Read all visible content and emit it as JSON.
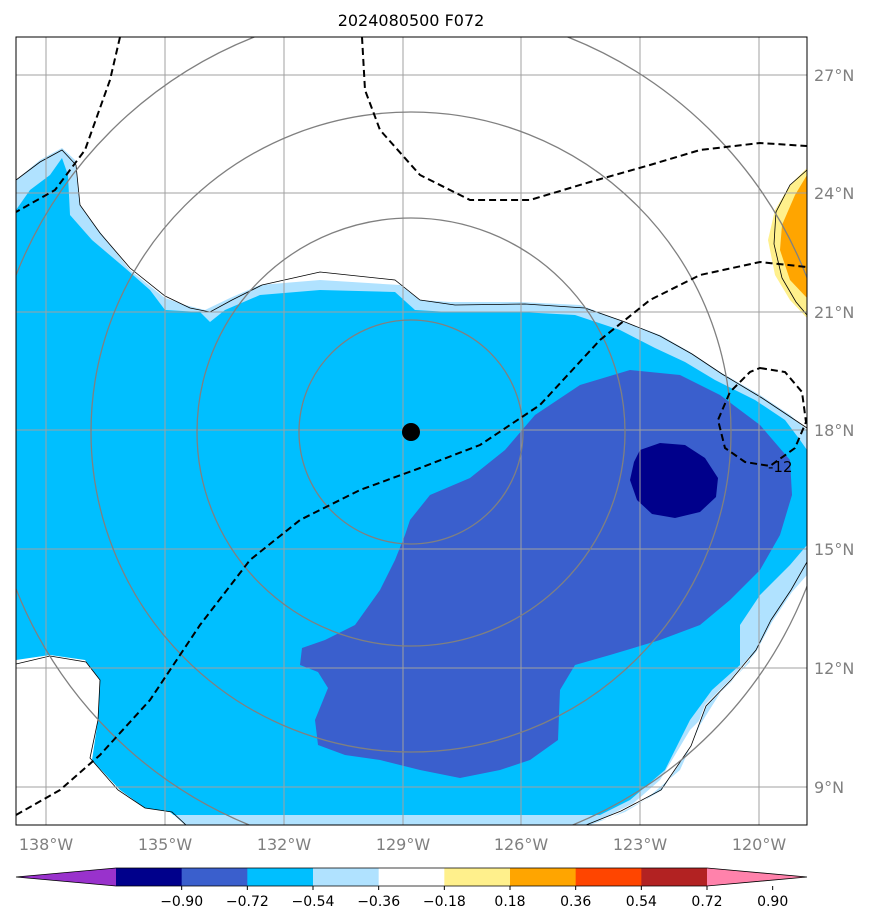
{
  "title": "2024080500 F072",
  "lat_labels": [
    "27°N",
    "24°N",
    "21°N",
    "18°N",
    "15°N",
    "12°N",
    "9°N"
  ],
  "lon_labels": [
    "138°W",
    "135°W",
    "132°W",
    "129°W",
    "126°W",
    "123°W",
    "120°W"
  ],
  "contour_label": "-12",
  "colorbar": {
    "labels": [
      "−0.90",
      "−0.72",
      "−0.54",
      "−0.36",
      "−0.18",
      "0.18",
      "0.36",
      "0.54",
      "0.72",
      "0.90"
    ],
    "colors": [
      "#9932cc",
      "#00008b",
      "#3a5fcd",
      "#00bfff",
      "#b0e2ff",
      "#ffffff",
      "#fff08c",
      "#ffa500",
      "#ff4500",
      "#b22222",
      "#ff82ab"
    ]
  },
  "colors": {
    "level_neg_036": "#00bfff",
    "level_neg_018": "#b0e2ff",
    "level_neg_054": "#3a5fcd",
    "level_neg_072": "#00008b",
    "level_036": "#ffa500",
    "level_018": "#fff08c",
    "grid": "#a0a0a0",
    "range_rings": "#808080"
  },
  "center_marker": "storm-center-dot"
}
